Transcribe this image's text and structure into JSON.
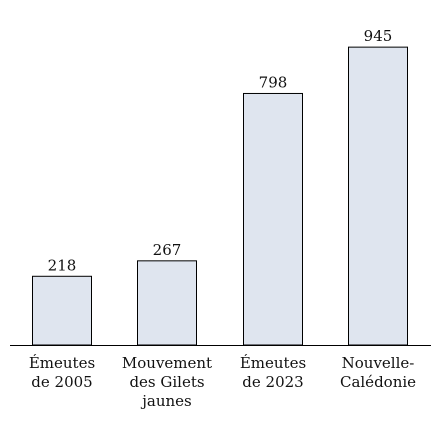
{
  "chart_data": {
    "type": "bar",
    "categories": [
      [
        "Émeutes",
        "de 2005"
      ],
      [
        "Mouvement",
        "des Gilets",
        "jaunes"
      ],
      [
        "Émeutes",
        "de 2023"
      ],
      [
        "Nouvelle-",
        "Calédonie"
      ]
    ],
    "values": [
      218,
      267,
      798,
      945
    ],
    "value_labels": [
      "218",
      "267",
      "798",
      "945"
    ],
    "title": "",
    "xlabel": "",
    "ylabel": "",
    "ylim": [
      0,
      1000
    ],
    "grid": false,
    "legend": "none",
    "colors": {
      "bar_fill": "#dfe5ef",
      "bar_stroke": "#000000",
      "axis": "#000000",
      "text": "#111111"
    }
  }
}
